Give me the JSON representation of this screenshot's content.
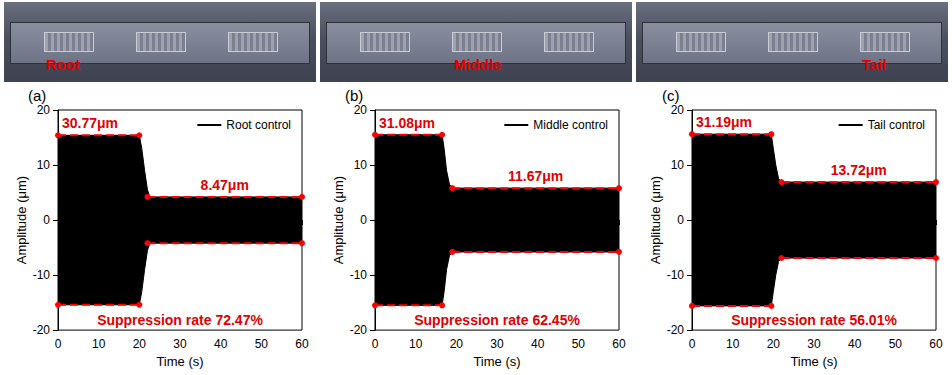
{
  "photos": [
    "Root",
    "Middle",
    "Tail"
  ],
  "chart_data": [
    {
      "type": "area",
      "letter": "(a)",
      "xlabel": "Time (s)",
      "ylabel": "Amplitude (μm)",
      "x": [
        0,
        20,
        20.6,
        21.3,
        22,
        22.6,
        60
      ],
      "series": [
        {
          "name": "Root control",
          "color": "#000000",
          "values": [
            15.4,
            15.4,
            13,
            9,
            5.5,
            4.2,
            4.2
          ],
          "lower": [
            -15.4,
            -15.4,
            -13,
            -9,
            -5.5,
            -4.2,
            -4.2
          ]
        }
      ],
      "envelope": {
        "color": "#ff0000",
        "line_style": "dashed",
        "marker": "circle",
        "segments": [
          {
            "x": [
              0,
              20
            ],
            "y": 15.4
          },
          {
            "x": [
              0,
              20
            ],
            "y": -15.4
          },
          {
            "x": [
              22,
              60
            ],
            "y": 4.2
          },
          {
            "x": [
              22,
              60
            ],
            "y": -4.2
          }
        ]
      },
      "before_label": "30.77μm",
      "after_label": "8.47μm",
      "rate_label": "Suppression rate 72.47%",
      "xlim": [
        0,
        60
      ],
      "xticks": [
        0,
        10,
        20,
        30,
        40,
        50,
        60
      ],
      "ylim": [
        -20,
        20
      ],
      "yticks": [
        -20,
        -10,
        0,
        10,
        20
      ],
      "legend": "upper right",
      "grid": false
    },
    {
      "type": "area",
      "letter": "(b)",
      "xlabel": "Time (s)",
      "ylabel": "Amplitude (μm)",
      "x": [
        0,
        16.5,
        17,
        17.6,
        18.3,
        19,
        60
      ],
      "series": [
        {
          "name": "Middle control",
          "color": "#000000",
          "values": [
            15.5,
            15.5,
            13,
            9,
            6.5,
            5.8,
            5.8
          ],
          "lower": [
            -15.5,
            -15.5,
            -13,
            -9,
            -6.5,
            -5.8,
            -5.8
          ]
        }
      ],
      "envelope": {
        "color": "#ff0000",
        "line_style": "dashed",
        "marker": "circle",
        "segments": [
          {
            "x": [
              0,
              16.5
            ],
            "y": 15.5
          },
          {
            "x": [
              0,
              16.5
            ],
            "y": -15.5
          },
          {
            "x": [
              19,
              60
            ],
            "y": 5.8
          },
          {
            "x": [
              19,
              60
            ],
            "y": -5.8
          }
        ]
      },
      "before_label": "31.08μm",
      "after_label": "11.67μm",
      "rate_label": "Suppression rate 62.45%",
      "xlim": [
        0,
        60
      ],
      "xticks": [
        0,
        10,
        20,
        30,
        40,
        50,
        60
      ],
      "ylim": [
        -20,
        20
      ],
      "yticks": [
        -20,
        -10,
        0,
        10,
        20
      ],
      "legend": "upper right",
      "grid": false
    },
    {
      "type": "area",
      "letter": "(c)",
      "xlabel": "Time (s)",
      "ylabel": "Amplitude (μm)",
      "x": [
        0,
        19.5,
        20,
        20.6,
        21.3,
        22,
        60
      ],
      "series": [
        {
          "name": "Tail control",
          "color": "#000000",
          "values": [
            15.6,
            15.6,
            13,
            10,
            7.5,
            6.9,
            6.9
          ],
          "lower": [
            -15.6,
            -15.6,
            -13,
            -10,
            -7.5,
            -6.9,
            -6.9
          ]
        }
      ],
      "envelope": {
        "color": "#ff0000",
        "line_style": "dashed",
        "marker": "circle",
        "segments": [
          {
            "x": [
              0,
              19.5
            ],
            "y": 15.6
          },
          {
            "x": [
              0,
              19.5
            ],
            "y": -15.6
          },
          {
            "x": [
              22,
              60
            ],
            "y": 6.9
          },
          {
            "x": [
              22,
              60
            ],
            "y": -6.9
          }
        ]
      },
      "before_label": "31.19μm",
      "after_label": "13.72μm",
      "rate_label": "Suppression rate 56.01%",
      "xlim": [
        0,
        60
      ],
      "xticks": [
        0,
        10,
        20,
        30,
        40,
        50,
        60
      ],
      "ylim": [
        -20,
        20
      ],
      "yticks": [
        -20,
        -10,
        0,
        10,
        20
      ],
      "legend": "upper right",
      "grid": false
    }
  ]
}
